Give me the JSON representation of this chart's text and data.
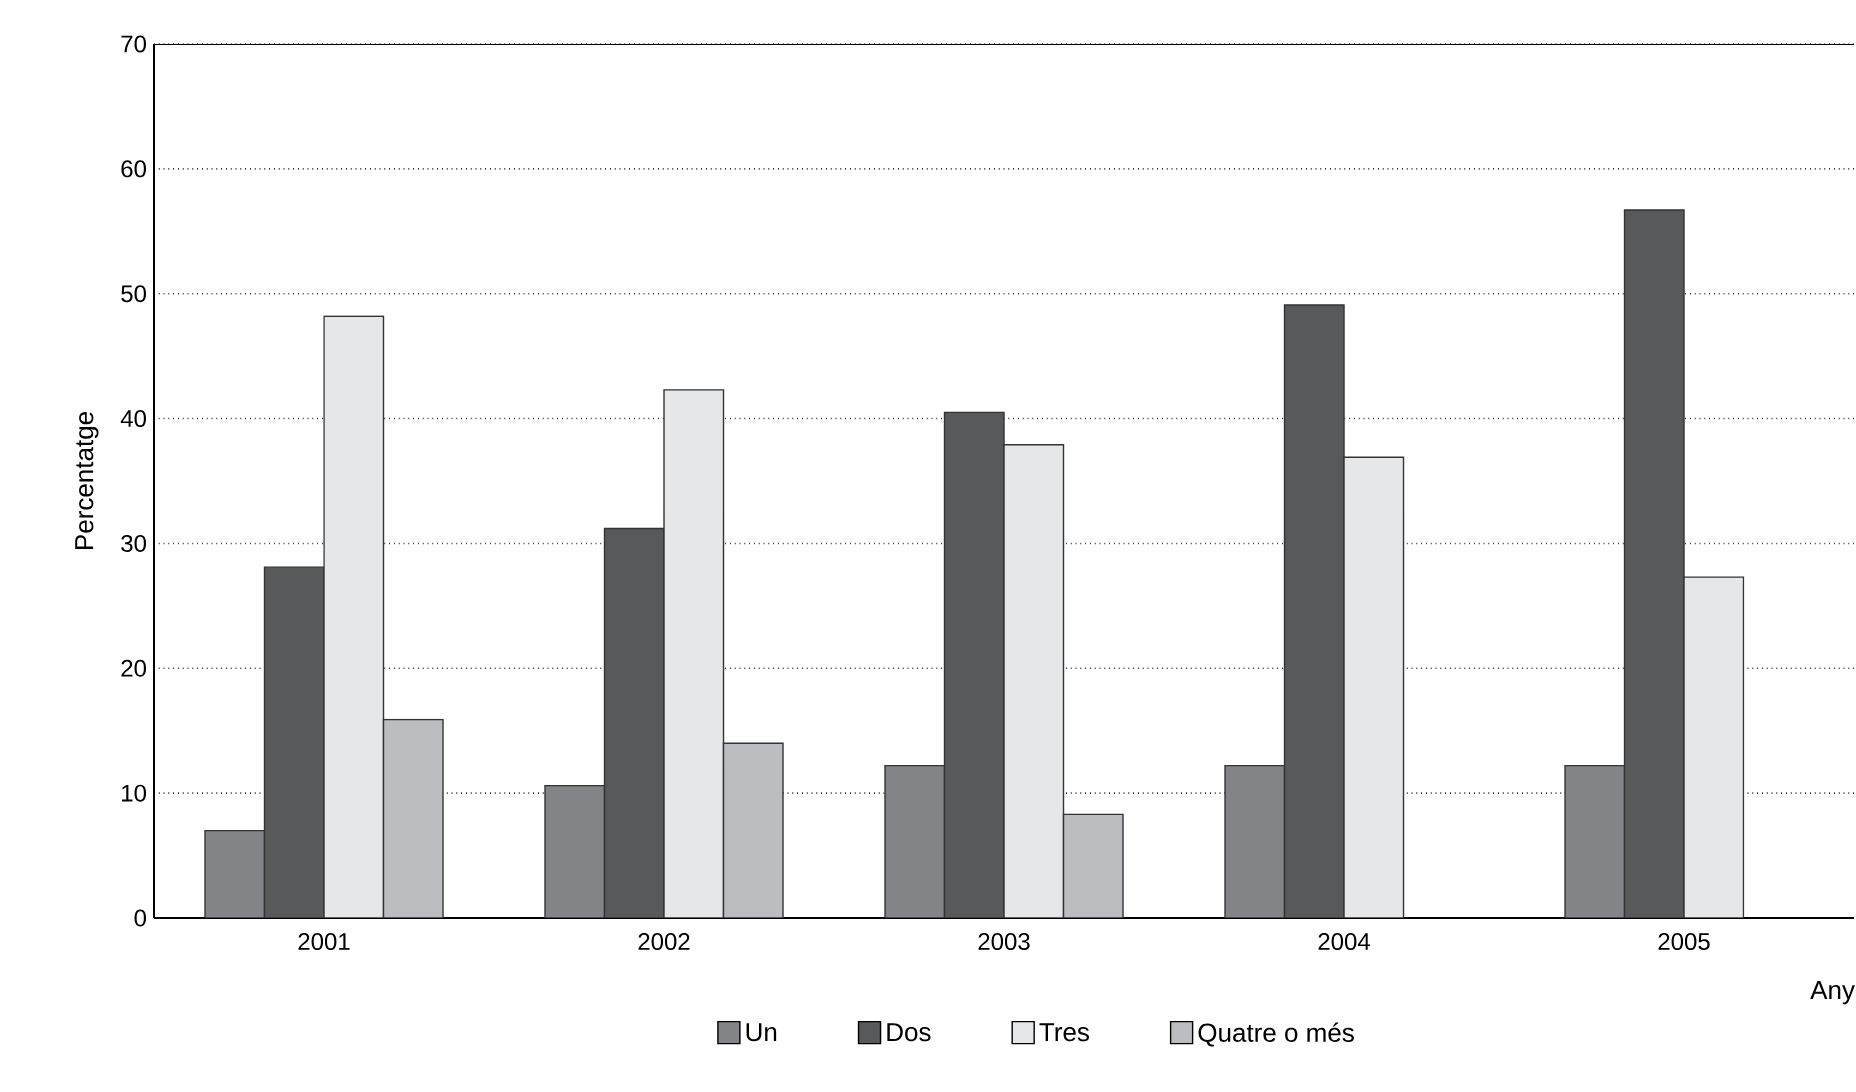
{
  "chart_data": {
    "type": "bar",
    "xlabel": "Any",
    "ylabel": "Percentatge",
    "categories": [
      "2001",
      "2002",
      "2003",
      "2004",
      "2005"
    ],
    "series": [
      {
        "name": "Un",
        "color": "#838487",
        "values": [
          7.0,
          10.6,
          12.2,
          12.2,
          12.2
        ]
      },
      {
        "name": "Dos",
        "color": "#58595b",
        "values": [
          28.1,
          31.2,
          40.5,
          49.1,
          56.7
        ]
      },
      {
        "name": "Tres",
        "color": "#e6e7e8",
        "values": [
          48.2,
          42.3,
          37.9,
          36.9,
          27.3
        ]
      },
      {
        "name": "Quatre o més",
        "color": "#bcbdc0",
        "values": [
          15.9,
          14.0,
          8.3,
          null,
          null
        ]
      }
    ],
    "ylim": [
      0,
      70
    ],
    "yticks": [
      0,
      10,
      20,
      30,
      40,
      50,
      60,
      70
    ],
    "grid": "y",
    "legend": "bottom"
  }
}
